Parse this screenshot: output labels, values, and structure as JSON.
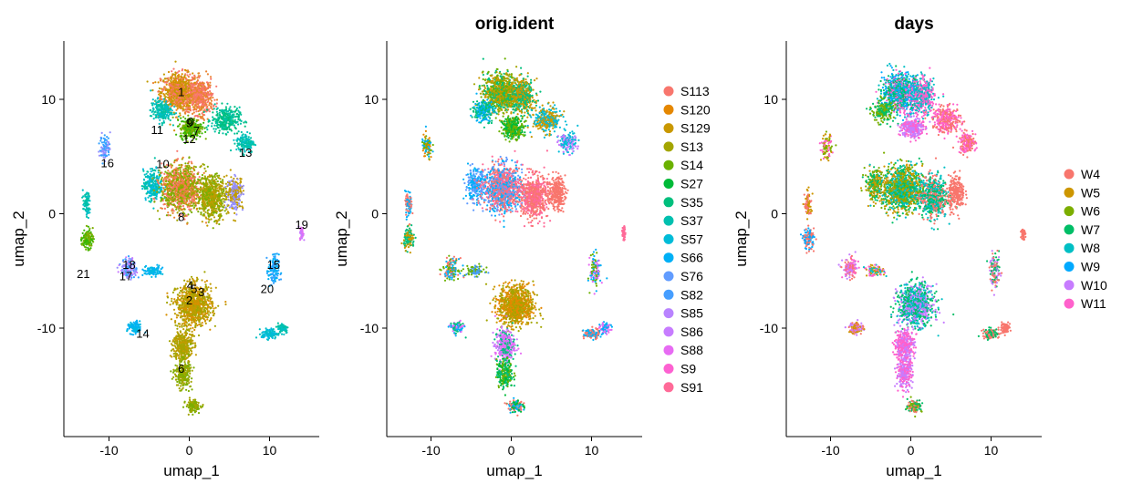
{
  "chart_data": [
    {
      "type": "scatter",
      "title": "",
      "xlabel": "umap_1",
      "ylabel": "umap_2",
      "xlim": [
        -15.5,
        15.5
      ],
      "ylim": [
        -19.5,
        15.2
      ],
      "xticks": [
        -10,
        0,
        10
      ],
      "xtick_labels": [
        "-10",
        "0",
        "10"
      ],
      "yticks": [
        -10,
        0,
        10
      ],
      "ytick_labels": [
        "-10",
        "0",
        "10"
      ],
      "grid": false,
      "legend": "none",
      "cluster_labels": [
        {
          "text": "0",
          "x": 0.2,
          "y": 8.0
        },
        {
          "text": "1",
          "x": -1.0,
          "y": 10.6
        },
        {
          "text": "2",
          "x": 0.0,
          "y": -7.6
        },
        {
          "text": "3",
          "x": 1.5,
          "y": -6.9
        },
        {
          "text": "4",
          "x": 0.1,
          "y": -6.3
        },
        {
          "text": "5",
          "x": 0.6,
          "y": -6.6
        },
        {
          "text": "6",
          "x": -1.0,
          "y": -13.6
        },
        {
          "text": "7",
          "x": 0.9,
          "y": 7.2
        },
        {
          "text": "8",
          "x": -1.0,
          "y": -0.3
        },
        {
          "text": "9",
          "x": 0.0,
          "y": 7.9
        },
        {
          "text": "10",
          "x": -3.3,
          "y": 4.3
        },
        {
          "text": "11",
          "x": -4.0,
          "y": 7.3
        },
        {
          "text": "12",
          "x": 0.0,
          "y": 6.5
        },
        {
          "text": "13",
          "x": 7.0,
          "y": 5.3
        },
        {
          "text": "14",
          "x": -5.8,
          "y": -10.5
        },
        {
          "text": "15",
          "x": 10.5,
          "y": -4.5
        },
        {
          "text": "16",
          "x": -10.2,
          "y": 4.4
        },
        {
          "text": "17",
          "x": -7.9,
          "y": -5.5
        },
        {
          "text": "18",
          "x": -7.5,
          "y": -4.5
        },
        {
          "text": "19",
          "x": 14.0,
          "y": -1.0
        },
        {
          "text": "20",
          "x": 9.7,
          "y": -6.6
        },
        {
          "text": "21",
          "x": -13.2,
          "y": -5.3
        }
      ],
      "cluster_colors": [
        "#F8766D",
        "#EA8331",
        "#D89000",
        "#C09B00",
        "#A3A500",
        "#7CAE00",
        "#39B600",
        "#00BB4E",
        "#00BF7D",
        "#00C1A3",
        "#00BFC4",
        "#00BAE0",
        "#00B0F6",
        "#35A2FF",
        "#9590FF",
        "#C77CFF",
        "#E76BF3",
        "#FA62DB",
        "#FF62BC",
        "#FF6C91",
        "#F8766D",
        "#D89000"
      ]
    },
    {
      "type": "scatter",
      "title": "orig.ident",
      "xlabel": "umap_1",
      "ylabel": "umap_2",
      "xlim": [
        -15.5,
        15.5
      ],
      "ylim": [
        -19.5,
        15.2
      ],
      "xticks": [
        -10,
        0,
        10
      ],
      "xtick_labels": [
        "-10",
        "0",
        "10"
      ],
      "yticks": [
        -10,
        0,
        10
      ],
      "ytick_labels": [
        "-10",
        "0",
        "10"
      ],
      "grid": false,
      "legend": "right",
      "legend_entries": [
        {
          "label": "S113",
          "color": "#F8766D"
        },
        {
          "label": "S120",
          "color": "#E58700"
        },
        {
          "label": "S129",
          "color": "#C99800"
        },
        {
          "label": "S13",
          "color": "#A3A500"
        },
        {
          "label": "S14",
          "color": "#6BB100"
        },
        {
          "label": "S27",
          "color": "#00BA38"
        },
        {
          "label": "S35",
          "color": "#00BF7D"
        },
        {
          "label": "S37",
          "color": "#00C0AF"
        },
        {
          "label": "S57",
          "color": "#00BCD8"
        },
        {
          "label": "S66",
          "color": "#00B0F6"
        },
        {
          "label": "S76",
          "color": "#619CFF"
        },
        {
          "label": "S82",
          "color": "#469EFF"
        },
        {
          "label": "S85",
          "color": "#B983FF"
        },
        {
          "label": "S86",
          "color": "#C77CFF"
        },
        {
          "label": "S88",
          "color": "#E76BF3"
        },
        {
          "label": "S9",
          "color": "#FD61D1"
        },
        {
          "label": "S91",
          "color": "#FF6A98"
        }
      ]
    },
    {
      "type": "scatter",
      "title": "days",
      "xlabel": "umap_1",
      "ylabel": "umap_2",
      "xlim": [
        -15.5,
        15.5
      ],
      "ylim": [
        -19.5,
        15.2
      ],
      "xticks": [
        -10,
        0,
        10
      ],
      "xtick_labels": [
        "-10",
        "0",
        "10"
      ],
      "yticks": [
        -10,
        0,
        10
      ],
      "ytick_labels": [
        "-10",
        "0",
        "10"
      ],
      "grid": false,
      "legend": "right",
      "legend_entries": [
        {
          "label": "W4",
          "color": "#F8766D"
        },
        {
          "label": "W5",
          "color": "#CD9600"
        },
        {
          "label": "W6",
          "color": "#7CAE00"
        },
        {
          "label": "W7",
          "color": "#00BE67"
        },
        {
          "label": "W8",
          "color": "#00BFC4"
        },
        {
          "label": "W9",
          "color": "#00A9FF"
        },
        {
          "label": "W10",
          "color": "#C77CFF"
        },
        {
          "label": "W11",
          "color": "#FF61CC"
        }
      ]
    }
  ]
}
